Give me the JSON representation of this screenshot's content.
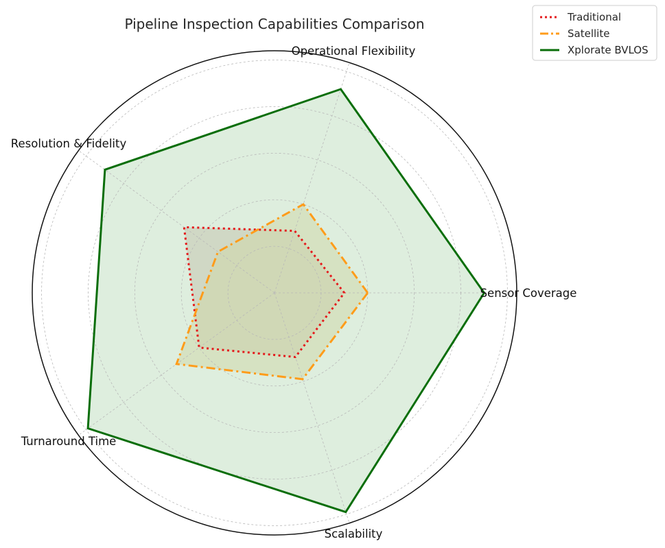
{
  "chart_data": {
    "type": "radar",
    "title": "Pipeline Inspection Capabilities Comparison",
    "axes": [
      "Sensor Coverage",
      "Operational Flexibility",
      "Resolution & Fidelity",
      "Turnaround Time",
      "Scalability"
    ],
    "rmax": 5.2,
    "grid_rings": [
      1,
      2,
      3,
      4,
      5
    ],
    "grid": true,
    "legend_position": "top-right",
    "series": [
      {
        "name": "Traditional",
        "values": [
          1.5,
          1.4,
          2.4,
          2.0,
          1.45
        ],
        "color": "#e41a1c",
        "linestyle": "dotted",
        "fill": "#c9a89a"
      },
      {
        "name": "Satellite",
        "values": [
          2.0,
          2.0,
          1.5,
          2.6,
          1.95
        ],
        "color": "#ff9c1a",
        "linestyle": "dashdot",
        "fill": "#e0cf8c"
      },
      {
        "name": "Xplorate BVLOS",
        "values": [
          4.5,
          4.6,
          4.5,
          4.95,
          4.95
        ],
        "color": "#0a6e0a",
        "linestyle": "solid",
        "fill": "#c2e0c2"
      }
    ]
  }
}
